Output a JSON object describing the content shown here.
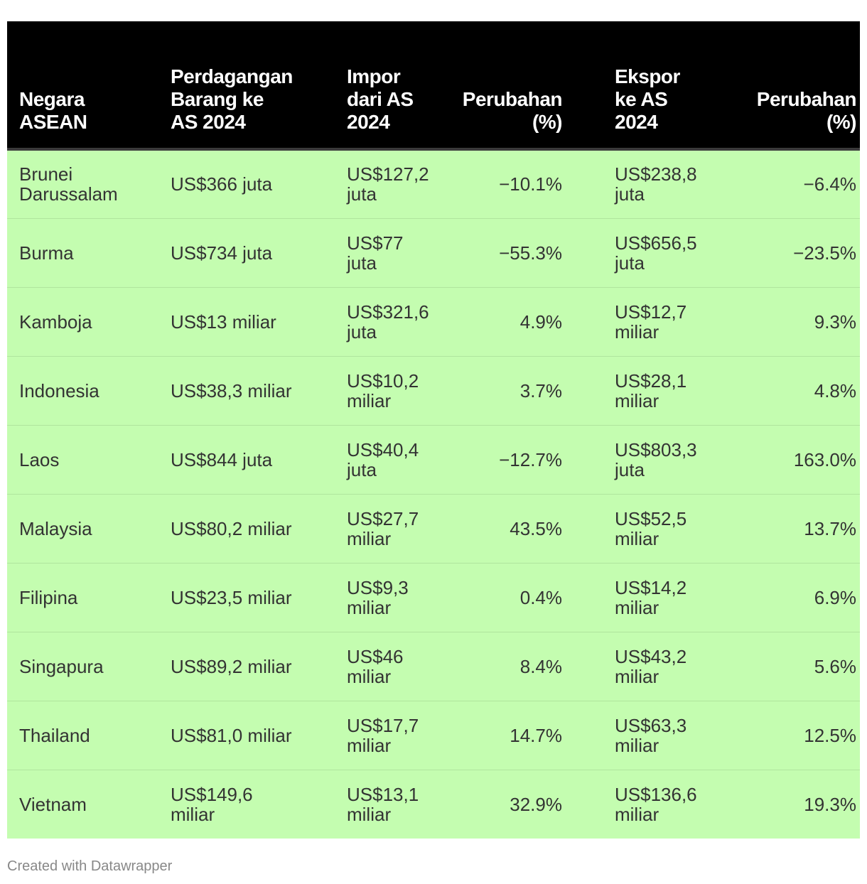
{
  "chart_data": {
    "type": "table",
    "columns": [
      "Negara\nASEAN",
      "Perdagangan\nBarang ke\nAS 2024",
      "Impor\ndari AS\n2024",
      "Perubahan\n(%)",
      "Ekspor\nke AS\n2024",
      "Perubahan\n(%)"
    ],
    "rows": [
      [
        "Brunei\nDarussalam",
        "US$366 juta",
        "US$127,2\njuta",
        "−10.1%",
        "US$238,8\njuta",
        "−6.4%"
      ],
      [
        "Burma",
        "US$734 juta",
        "US$77\njuta",
        "−55.3%",
        "US$656,5\njuta",
        "−23.5%"
      ],
      [
        "Kamboja",
        "US$13 miliar",
        "US$321,6\njuta",
        "4.9%",
        "US$12,7\nmiliar",
        "9.3%"
      ],
      [
        "Indonesia",
        "US$38,3 miliar",
        "US$10,2\nmiliar",
        "3.7%",
        "US$28,1\nmiliar",
        "4.8%"
      ],
      [
        "Laos",
        "US$844 juta",
        "US$40,4\njuta",
        "−12.7%",
        "US$803,3\njuta",
        "163.0%"
      ],
      [
        "Malaysia",
        "US$80,2 miliar",
        "US$27,7\nmiliar",
        "43.5%",
        "US$52,5\nmiliar",
        "13.7%"
      ],
      [
        "Filipina",
        "US$23,5 miliar",
        "US$9,3\nmiliar",
        "0.4%",
        "US$14,2\nmiliar",
        "6.9%"
      ],
      [
        "Singapura",
        "US$89,2 miliar",
        "US$46\nmiliar",
        "8.4%",
        "US$43,2\nmiliar",
        "5.6%"
      ],
      [
        "Thailand",
        "US$81,0 miliar",
        "US$17,7\nmiliar",
        "14.7%",
        "US$63,3\nmiliar",
        "12.5%"
      ],
      [
        "Vietnam",
        "US$149,6\nmiliar",
        "US$13,1\nmiliar",
        "32.9%",
        "US$136,6\nmiliar",
        "19.3%"
      ]
    ]
  },
  "colors": {
    "header_background": "#000000",
    "header_text": "#ffffff",
    "row_background": "#c4fdb0",
    "body_text": "#333333",
    "footer_text": "#888888"
  },
  "footer": {
    "credit": "Created with Datawrapper"
  }
}
